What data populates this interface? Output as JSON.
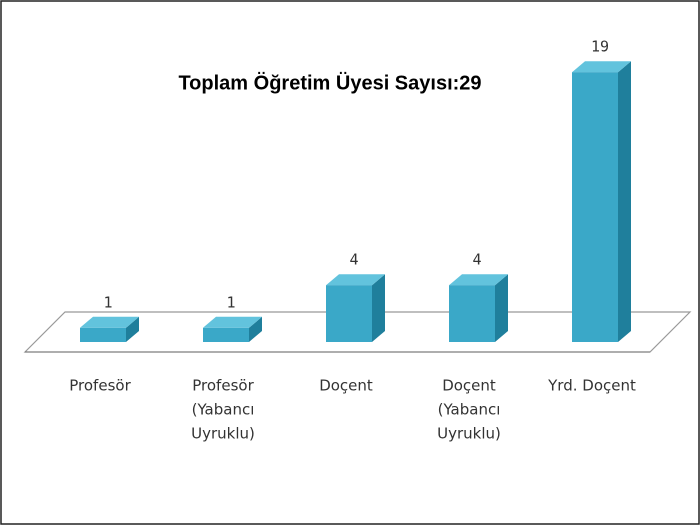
{
  "chart_data": {
    "type": "bar3d",
    "title": "Toplam Öğretim Üyesi Sayısı:29",
    "categories": [
      [
        "Profesör"
      ],
      [
        "Profesör",
        "(Yabancı",
        "Uyruklu)"
      ],
      [
        "Doçent"
      ],
      [
        "Doçent",
        "(Yabancı",
        "Uyruklu)"
      ],
      [
        "Yrd. Doçent"
      ]
    ],
    "values": [
      1,
      1,
      4,
      4,
      19
    ],
    "color": "#3aa8c8"
  }
}
